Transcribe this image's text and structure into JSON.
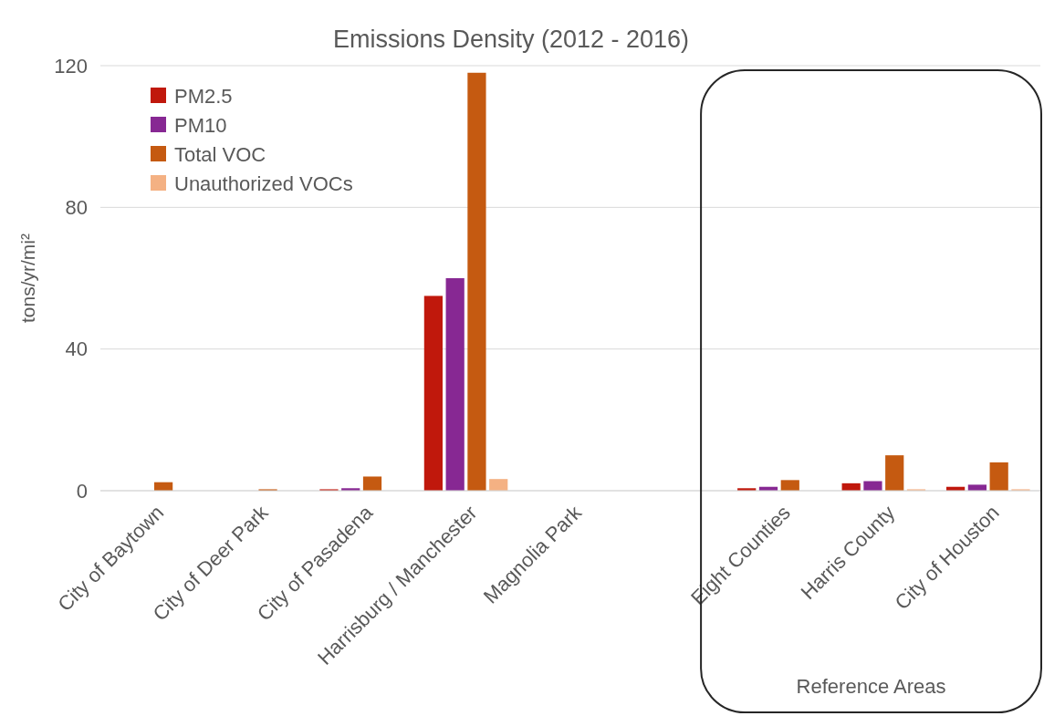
{
  "chart_data": {
    "type": "bar",
    "title": "Emissions Density (2012 - 2016)",
    "ylabel": "tons/yr/mi²",
    "categories": [
      "City of Baytown",
      "City of Deer Park",
      "City of Pasadena",
      "Harrisburg / Manchester",
      "Magnolia Park",
      null,
      "Eight Counties",
      "Harris County",
      "City of Houston"
    ],
    "series": [
      {
        "name": "PM2.5",
        "color": "#c0180c",
        "values": [
          null,
          null,
          0.4,
          55,
          null,
          null,
          0.7,
          2.1,
          1.1
        ]
      },
      {
        "name": "PM10",
        "color": "#872893",
        "values": [
          null,
          null,
          0.7,
          60,
          null,
          null,
          1.1,
          2.7,
          1.7
        ]
      },
      {
        "name": "Total VOC",
        "color": "#c55a11",
        "values": [
          2.4,
          0.4,
          4.0,
          118,
          null,
          null,
          3.0,
          10.0,
          8.0
        ]
      },
      {
        "name": "Unauthorized VOCs",
        "color": "#f4b183",
        "values": [
          null,
          null,
          null,
          3.3,
          null,
          null,
          null,
          0.4,
          0.4
        ]
      }
    ],
    "ylim": [
      0,
      120
    ],
    "yticks": [
      0,
      40,
      80,
      120
    ],
    "grid": "y",
    "legend": "top left",
    "annotations": [
      "Reference Areas"
    ]
  }
}
